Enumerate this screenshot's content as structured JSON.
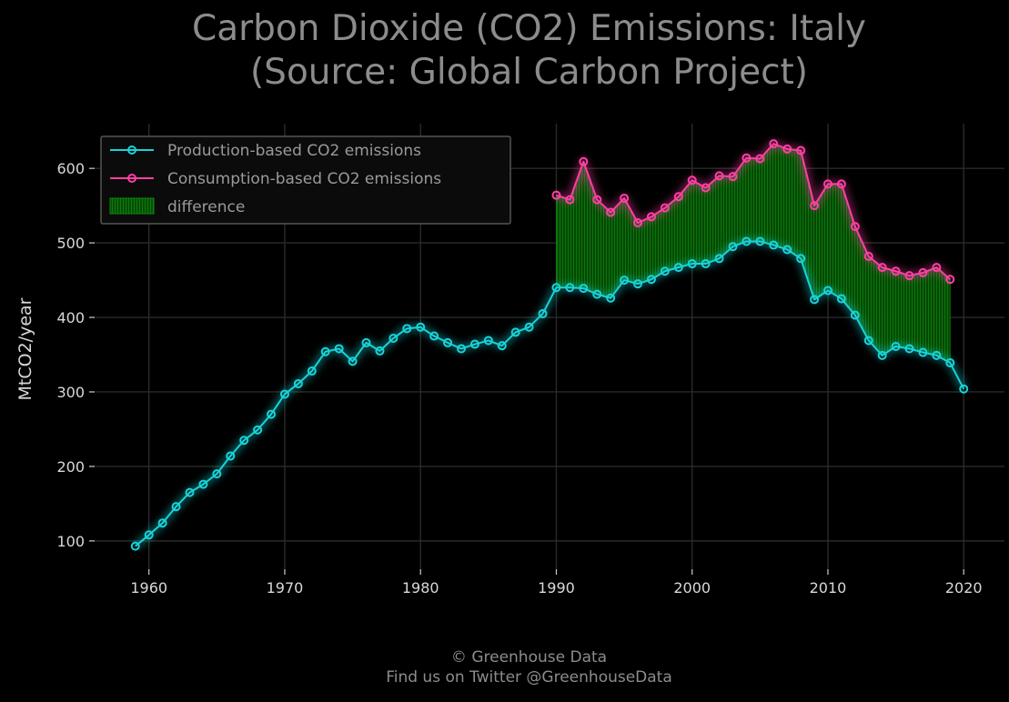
{
  "chart_data": {
    "type": "line",
    "title_line1": "Carbon Dioxide (CO2) Emissions: Italy",
    "title_line2": "(Source: Global Carbon Project)",
    "xlabel": "",
    "ylabel": "MtCO2/year",
    "xlim": [
      1956,
      2023
    ],
    "ylim": [
      62,
      660
    ],
    "xticks": [
      1960,
      1970,
      1980,
      1990,
      2000,
      2010,
      2020
    ],
    "yticks": [
      100,
      200,
      300,
      400,
      500,
      600
    ],
    "grid": true,
    "legend_position": "top-left",
    "series": [
      {
        "name": "Production-based CO2 emissions",
        "color": "#17d4d9",
        "x": [
          1959,
          1960,
          1961,
          1962,
          1963,
          1964,
          1965,
          1966,
          1967,
          1968,
          1969,
          1970,
          1971,
          1972,
          1973,
          1974,
          1975,
          1976,
          1977,
          1978,
          1979,
          1980,
          1981,
          1982,
          1983,
          1984,
          1985,
          1986,
          1987,
          1988,
          1989,
          1990,
          1991,
          1992,
          1993,
          1994,
          1995,
          1996,
          1997,
          1998,
          1999,
          2000,
          2001,
          2002,
          2003,
          2004,
          2005,
          2006,
          2007,
          2008,
          2009,
          2010,
          2011,
          2012,
          2013,
          2014,
          2015,
          2016,
          2017,
          2018,
          2019,
          2020
        ],
        "y": [
          93,
          108,
          124,
          146,
          165,
          176,
          190,
          214,
          235,
          249,
          270,
          297,
          311,
          328,
          354,
          358,
          341,
          366,
          355,
          372,
          385,
          387,
          375,
          366,
          358,
          364,
          369,
          362,
          380,
          387,
          405,
          440,
          440,
          439,
          431,
          426,
          450,
          445,
          451,
          462,
          467,
          472,
          472,
          479,
          495,
          502,
          502,
          497,
          491,
          479,
          424,
          436,
          425,
          403,
          369,
          349,
          361,
          358,
          353,
          349,
          339,
          304
        ]
      },
      {
        "name": "Consumption-based CO2 emissions",
        "color": "#ff3fa4",
        "x": [
          1990,
          1991,
          1992,
          1993,
          1994,
          1995,
          1996,
          1997,
          1998,
          1999,
          2000,
          2001,
          2002,
          2003,
          2004,
          2005,
          2006,
          2007,
          2008,
          2009,
          2010,
          2011,
          2012,
          2013,
          2014,
          2015,
          2016,
          2017,
          2018,
          2019
        ],
        "y": [
          564,
          558,
          609,
          558,
          541,
          560,
          527,
          535,
          547,
          562,
          584,
          574,
          590,
          589,
          614,
          613,
          633,
          626,
          624,
          550,
          579,
          579,
          522,
          482,
          467,
          462,
          456,
          460,
          467,
          451
        ]
      }
    ],
    "fill": {
      "name": "difference",
      "color": "#0a8a0a",
      "between": [
        "Consumption-based CO2 emissions",
        "Production-based CO2 emissions"
      ]
    }
  },
  "footer": {
    "line1": "© Greenhouse Data",
    "line2": "Find us on Twitter @GreenhouseData"
  }
}
